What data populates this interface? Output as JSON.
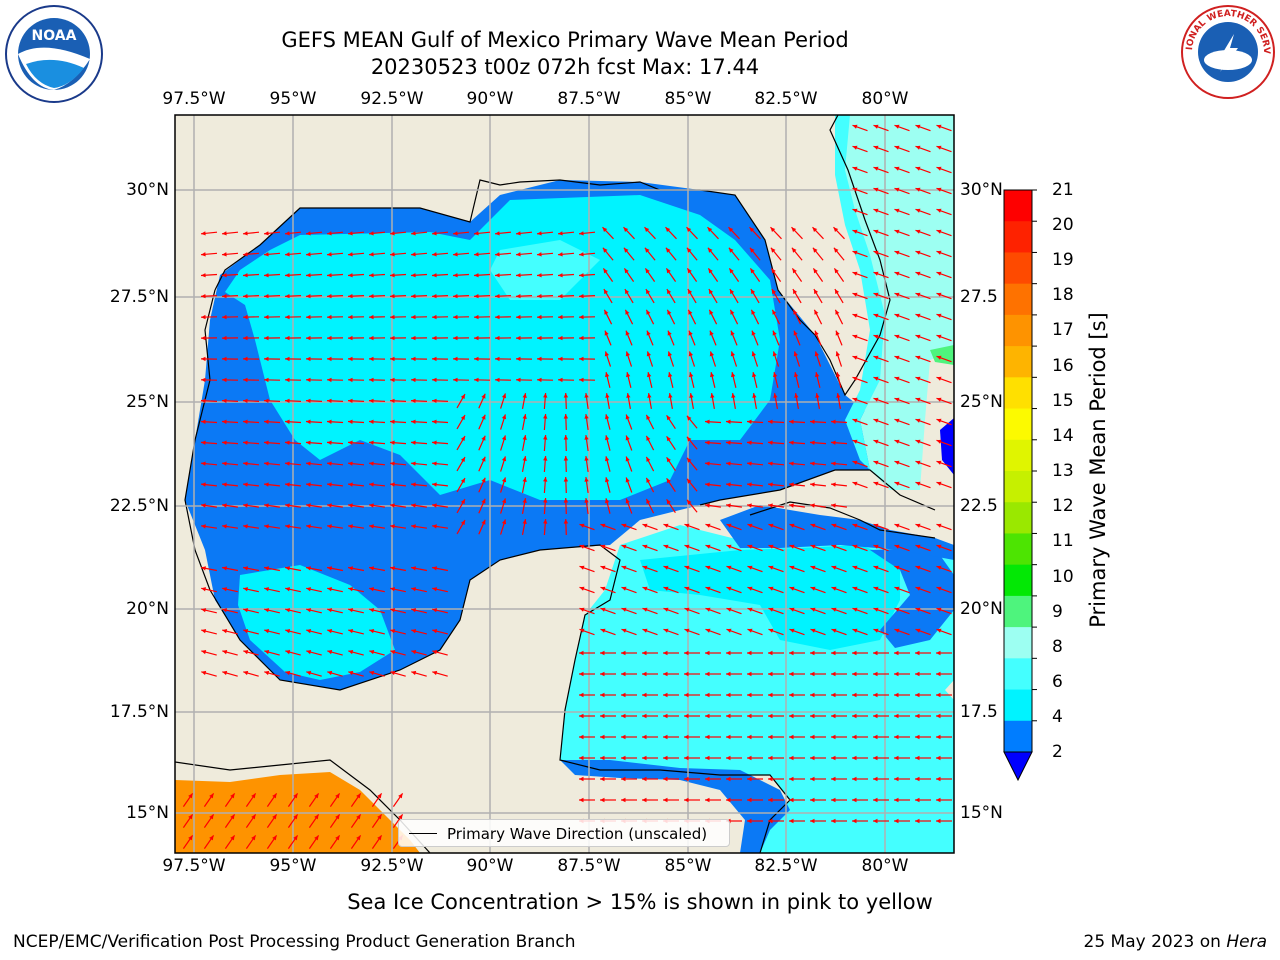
{
  "title": {
    "line1": "GEFS MEAN Gulf of Mexico Primary Wave Mean Period",
    "line2": "20230523 t00z 072h fcst   Max: 17.44"
  },
  "map": {
    "lon_ticks": [
      "97.5°W",
      "95°W",
      "92.5°W",
      "90°W",
      "87.5°W",
      "85°W",
      "82.5°W",
      "80°W"
    ],
    "lat_ticks_left": [
      "30°N",
      "27.5°N",
      "25°N",
      "22.5°N",
      "20°N",
      "17.5°N",
      "15°N"
    ],
    "lat_ticks_right": [
      "30°N",
      "27.5",
      "25°N",
      "22.5",
      "20°N",
      "17.5",
      "15°N"
    ],
    "land_color": "#efebdc",
    "grid": true,
    "legend_label": "Primary Wave Direction (unscaled)",
    "arrow_color": "#ff0000"
  },
  "colorbar": {
    "title": "Primary Wave Mean Period [s]",
    "labels": [
      "21",
      "20",
      "19",
      "18",
      "17",
      "16",
      "15",
      "14",
      "13",
      "12",
      "11",
      "10",
      "9",
      "8",
      "6",
      "4",
      "2"
    ],
    "colors": [
      "#fe0000",
      "#fe2200",
      "#fe4a00",
      "#fe7200",
      "#fe9300",
      "#feb400",
      "#ffe000",
      "#fcfa00",
      "#e0f500",
      "#c6f000",
      "#9ae800",
      "#4de402",
      "#03e805",
      "#4ef47d",
      "#9dfff2",
      "#44ffff",
      "#00f3ff",
      "#007dff"
    ],
    "under_color": "#0000ff"
  },
  "footnote": "Sea Ice Concentration > 15% is shown in pink to yellow",
  "credit": "NCEP/EMC/Verification Post Processing Product Generation Branch",
  "date_stamp": {
    "date": "25 May 2023 on",
    "machine": "Hera"
  },
  "logos": {
    "noaa": "NOAA",
    "nws": "NATIONAL WEATHER SERVICE"
  }
}
